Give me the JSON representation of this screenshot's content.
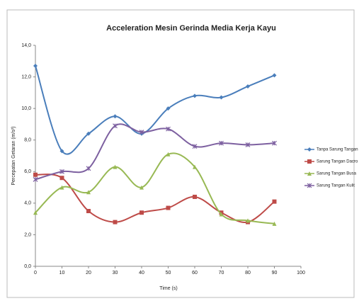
{
  "chart_data": {
    "type": "line",
    "title": "Acceleration Mesin Gerinda Media Kerja Kayu",
    "x_label": "Time (s)",
    "y_label": "Percepatan Getaran (m/s²)",
    "x": [
      0,
      10,
      20,
      30,
      40,
      50,
      60,
      70,
      80,
      90
    ],
    "series": [
      {
        "name": "Tanpa Sarung Tangan",
        "color": "#4a7ebb",
        "marker": "diamond",
        "values": [
          12.7,
          7.3,
          8.4,
          9.5,
          8.4,
          10.0,
          10.8,
          10.7,
          11.4,
          12.1
        ]
      },
      {
        "name": "Sarung Tangan Dacro",
        "color": "#be4b48",
        "marker": "square",
        "values": [
          5.8,
          5.6,
          3.5,
          2.8,
          3.4,
          3.7,
          4.4,
          3.4,
          2.8,
          4.1
        ]
      },
      {
        "name": "Sarung Tangan Busa",
        "color": "#98b954",
        "marker": "triangle",
        "values": [
          3.4,
          5.0,
          4.7,
          6.3,
          5.0,
          7.1,
          6.3,
          3.3,
          2.9,
          2.7
        ]
      },
      {
        "name": "Sarung Tangan Kulit",
        "color": "#7d60a0",
        "marker": "cross",
        "values": [
          5.5,
          6.0,
          6.2,
          8.9,
          8.5,
          8.7,
          7.6,
          7.8,
          7.7,
          7.8
        ]
      }
    ],
    "xlim": [
      0,
      100
    ],
    "xticks": [
      0,
      10,
      20,
      30,
      40,
      50,
      60,
      70,
      80,
      90,
      100
    ],
    "ylim": [
      0,
      14
    ],
    "yticks": [
      {
        "value": 0,
        "label": "0,0"
      },
      {
        "value": 2,
        "label": "2,0"
      },
      {
        "value": 4,
        "label": "4,0"
      },
      {
        "value": 6,
        "label": "6,0"
      },
      {
        "value": 8,
        "label": "8,0"
      },
      {
        "value": 10,
        "label": "10,0"
      },
      {
        "value": 12,
        "label": "12,0"
      },
      {
        "value": 14,
        "label": "14,0"
      }
    ],
    "grid": false,
    "smooth": true,
    "legend": "right"
  }
}
